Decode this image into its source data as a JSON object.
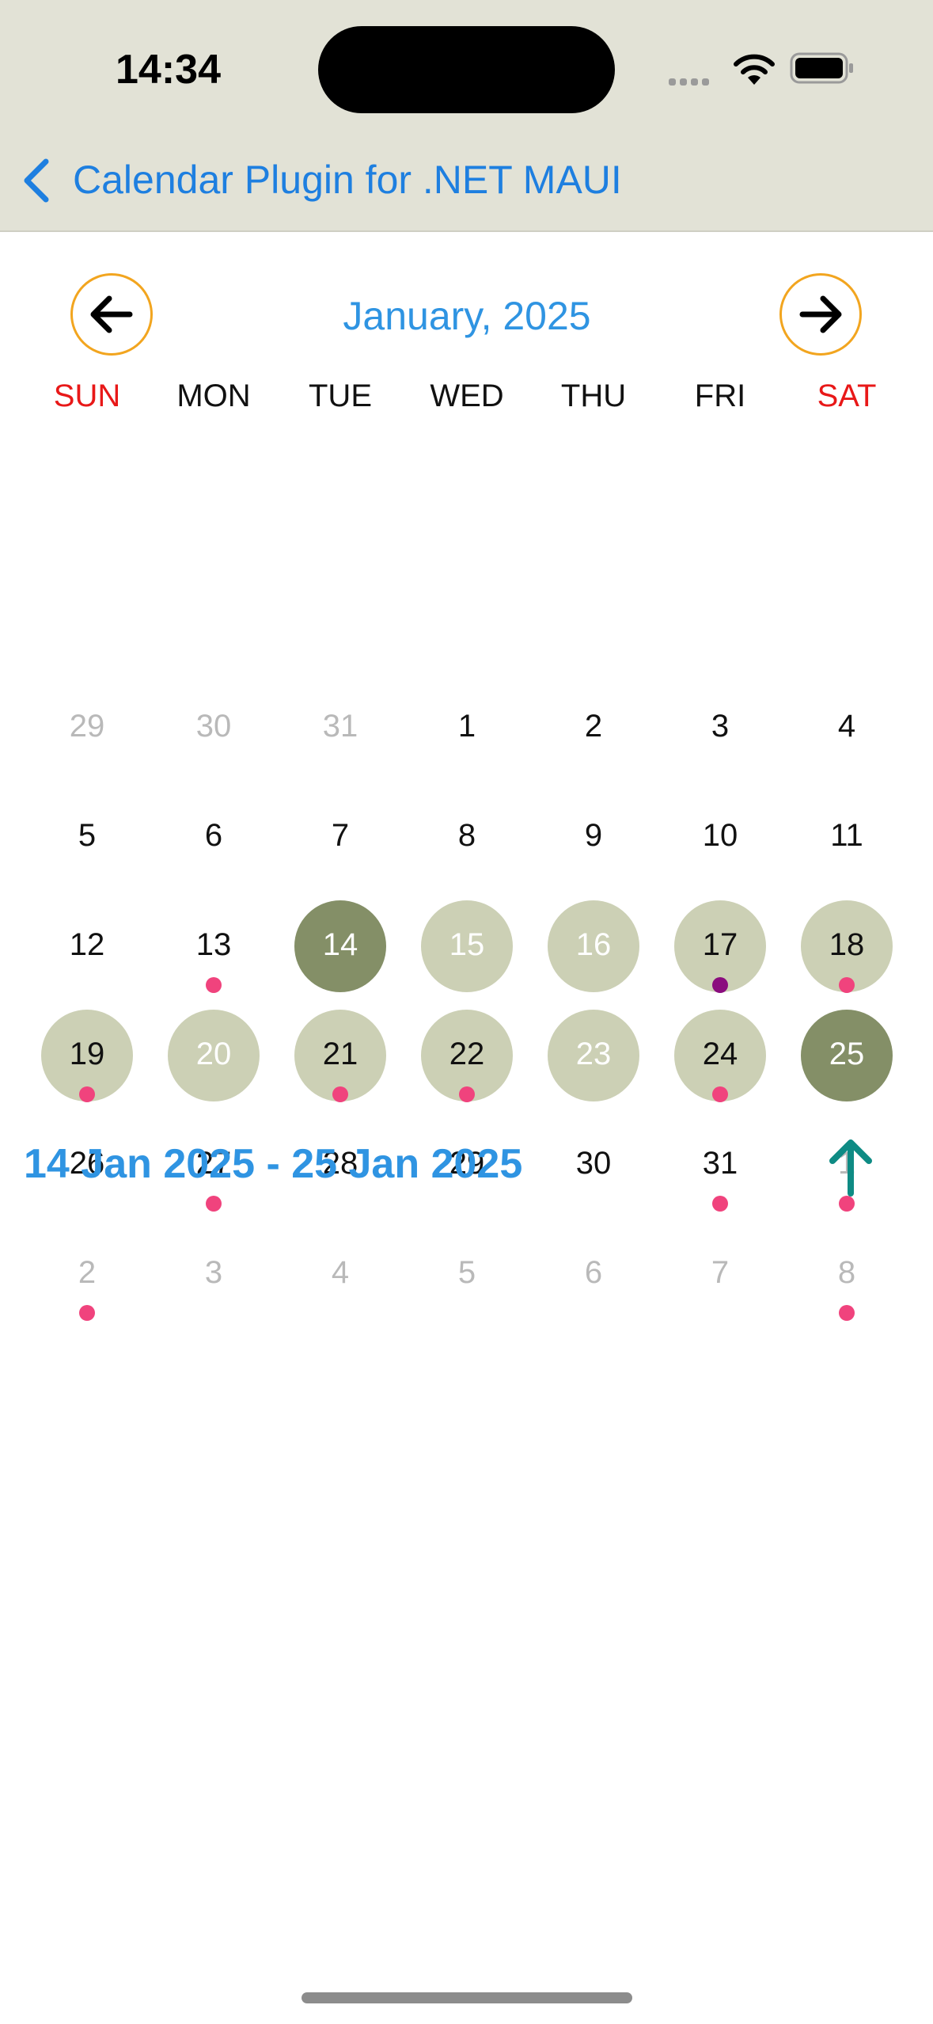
{
  "status_bar": {
    "time": "14:34"
  },
  "nav": {
    "title": "Calendar Plugin for .NET MAUI"
  },
  "calendar": {
    "month_title": "January, 2025",
    "weekdays": [
      "SUN",
      "MON",
      "TUE",
      "WED",
      "THU",
      "FRI",
      "SAT"
    ],
    "selection_color": "#848f67",
    "range_color": "#ccd0b5",
    "event_dot_color": "#f0437d",
    "weeks": [
      [
        {
          "d": "29",
          "other": true
        },
        {
          "d": "30",
          "other": true
        },
        {
          "d": "31",
          "other": true
        },
        {
          "d": "1"
        },
        {
          "d": "2"
        },
        {
          "d": "3"
        },
        {
          "d": "4"
        }
      ],
      [
        {
          "d": "5"
        },
        {
          "d": "6"
        },
        {
          "d": "7"
        },
        {
          "d": "8"
        },
        {
          "d": "9"
        },
        {
          "d": "10"
        },
        {
          "d": "11"
        }
      ],
      [
        {
          "d": "12"
        },
        {
          "d": "13",
          "dot": "pink"
        },
        {
          "d": "14",
          "state": "selected"
        },
        {
          "d": "15",
          "state": "range",
          "white": true
        },
        {
          "d": "16",
          "state": "range",
          "white": true
        },
        {
          "d": "17",
          "state": "range",
          "dot": "purple"
        },
        {
          "d": "18",
          "state": "range",
          "dot": "pink"
        }
      ],
      [
        {
          "d": "19",
          "state": "range",
          "dot": "pink"
        },
        {
          "d": "20",
          "state": "range",
          "white": true
        },
        {
          "d": "21",
          "state": "range",
          "dot": "pink"
        },
        {
          "d": "22",
          "state": "range",
          "dot": "pink"
        },
        {
          "d": "23",
          "state": "range",
          "white": true
        },
        {
          "d": "24",
          "state": "range",
          "dot": "pink"
        },
        {
          "d": "25",
          "state": "selected"
        }
      ],
      [
        {
          "d": "26"
        },
        {
          "d": "27",
          "dot": "pink"
        },
        {
          "d": "28"
        },
        {
          "d": "29"
        },
        {
          "d": "30"
        },
        {
          "d": "31",
          "dot": "pink"
        },
        {
          "d": "1",
          "other": true,
          "dot": "pink"
        }
      ],
      [
        {
          "d": "2",
          "other": true,
          "dot": "pink"
        },
        {
          "d": "3",
          "other": true
        },
        {
          "d": "4",
          "other": true
        },
        {
          "d": "5",
          "other": true
        },
        {
          "d": "6",
          "other": true
        },
        {
          "d": "7",
          "other": true
        },
        {
          "d": "8",
          "other": true,
          "dot": "pink"
        }
      ]
    ]
  },
  "range_label": "14 Jan 2025 - 25 Jan 2025",
  "icons": {
    "back": "chevron-left-icon",
    "prev_month": "arrow-left-icon",
    "next_month": "arrow-right-icon",
    "scroll_up": "arrow-up-icon"
  }
}
